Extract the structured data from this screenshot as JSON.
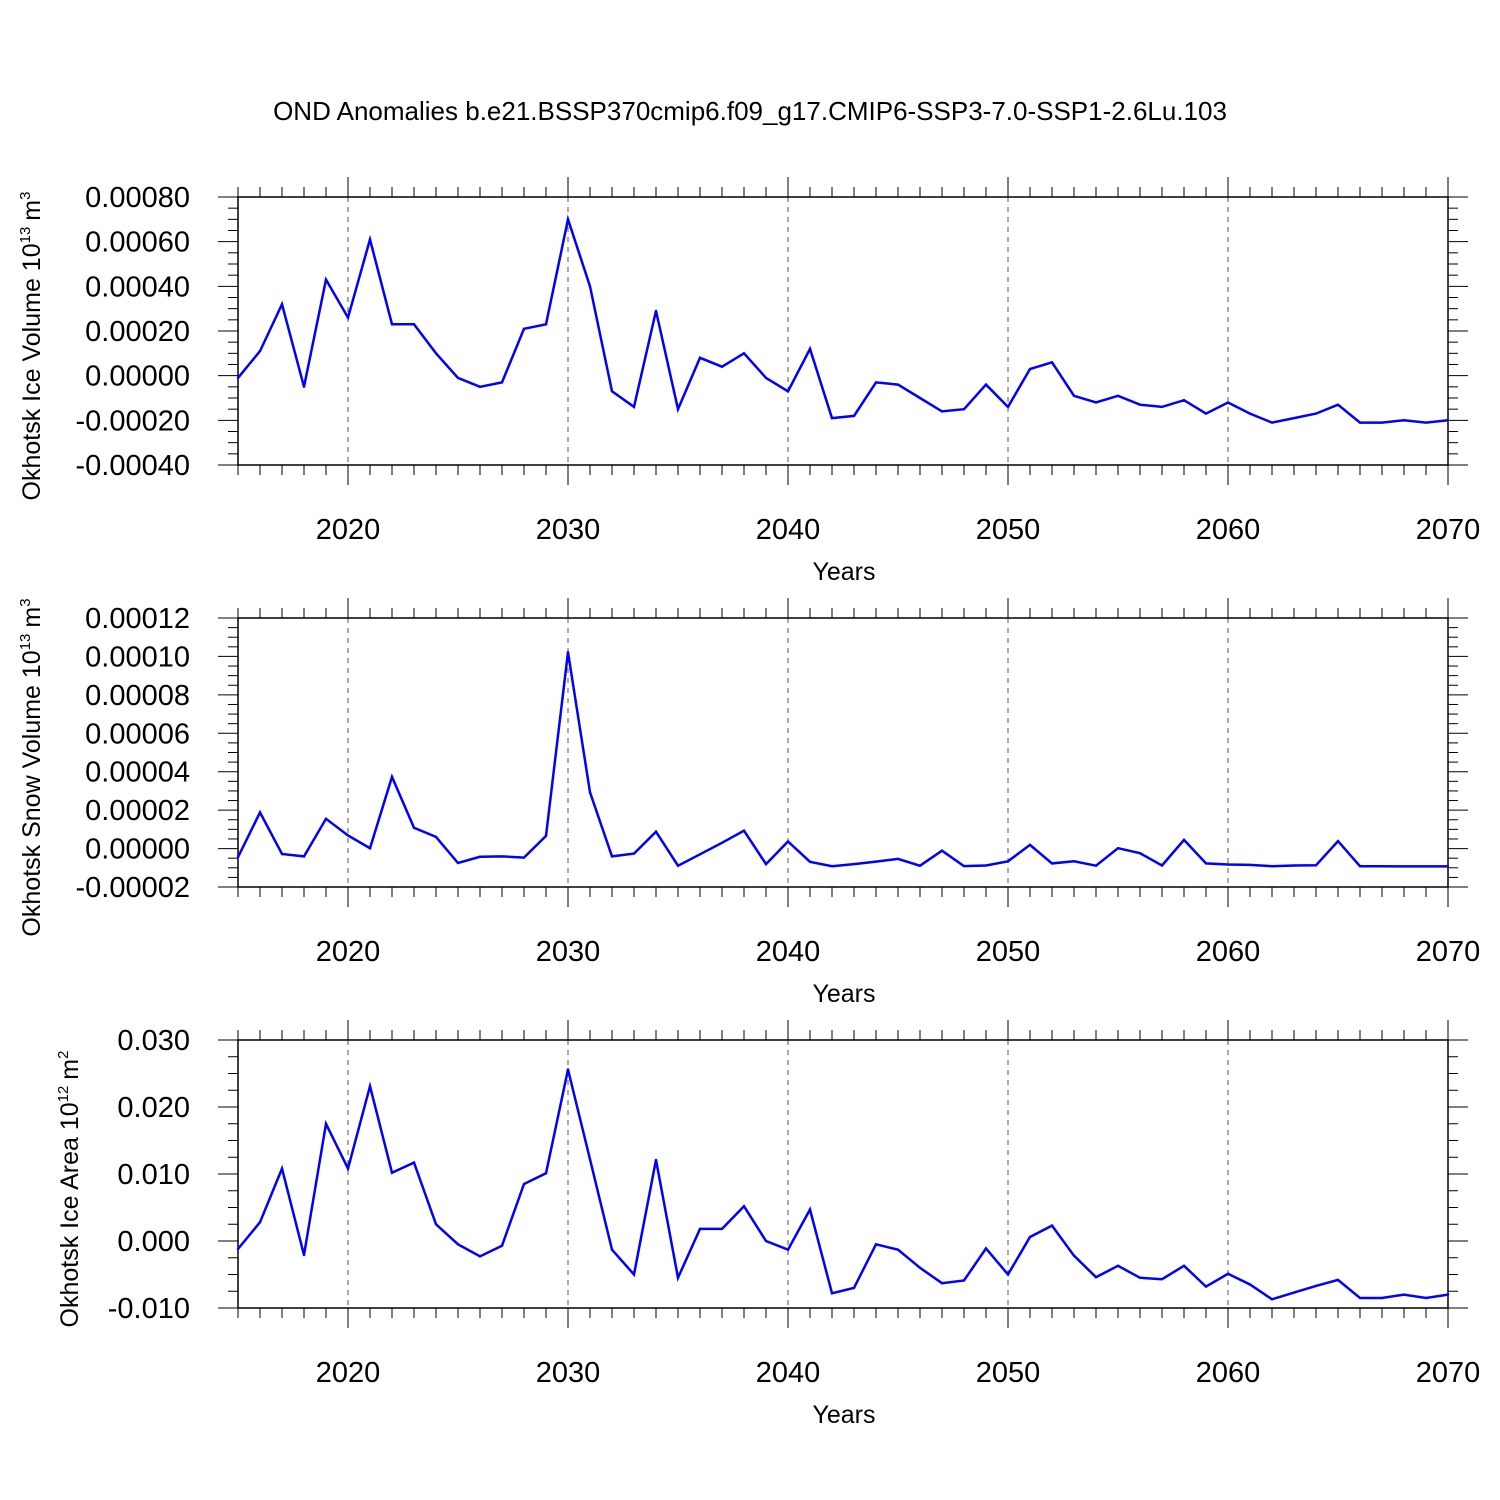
{
  "title": "OND Anomalies b.e21.BSSP370cmip6.f09_g17.CMIP6-SSP3-7.0-SSP1-2.6Lu.103",
  "line_color": "#0000ff",
  "chart_data": [
    {
      "type": "line",
      "xlabel": "Years",
      "ylabel_text": "Okhotsk Ice Volume 10",
      "ylabel_exp": "13",
      "ylabel_unit": "m",
      "ylabel_unit_exp": "3",
      "xlim": [
        2015,
        2070
      ],
      "ylim": [
        -0.0004,
        0.0008
      ],
      "x_ticks": [
        2020,
        2030,
        2040,
        2050,
        2060,
        2070
      ],
      "y_ticks": [
        -0.0004,
        -0.0002,
        0.0,
        0.0002,
        0.0004,
        0.0006,
        0.0008
      ],
      "y_tick_labels": [
        "-0.00040",
        "-0.00020",
        "0.00000",
        "0.00020",
        "0.00040",
        "0.00060",
        "0.00080"
      ],
      "grid": "dashed vertical at major x ticks",
      "x": [
        2015,
        2016,
        2017,
        2018,
        2019,
        2020,
        2021,
        2022,
        2023,
        2024,
        2025,
        2026,
        2027,
        2028,
        2029,
        2030,
        2031,
        2032,
        2033,
        2034,
        2035,
        2036,
        2037,
        2038,
        2039,
        2040,
        2041,
        2042,
        2043,
        2044,
        2045,
        2046,
        2047,
        2048,
        2049,
        2050,
        2051,
        2052,
        2053,
        2054,
        2055,
        2056,
        2057,
        2058,
        2059,
        2060,
        2061,
        2062,
        2063,
        2064,
        2065,
        2066,
        2067,
        2068,
        2069,
        2070
      ],
      "values": [
        -1e-05,
        0.00011,
        0.00032,
        -5e-05,
        0.00043,
        0.00026,
        0.00061,
        0.00023,
        0.00023,
        0.0001,
        -1e-05,
        -5e-05,
        -3e-05,
        0.00021,
        0.00023,
        0.0007,
        0.0004,
        -7e-05,
        -0.00014,
        0.00029,
        -0.00015,
        8e-05,
        4e-05,
        0.0001,
        -1e-05,
        -7e-05,
        0.00012,
        -0.00019,
        -0.00018,
        -3e-05,
        -4e-05,
        -0.0001,
        -0.00016,
        -0.00015,
        -4e-05,
        -0.00014,
        3e-05,
        6e-05,
        -9e-05,
        -0.00012,
        -9e-05,
        -0.00013,
        -0.00014,
        -0.00011,
        -0.00017,
        -0.00012,
        -0.00017,
        -0.00021,
        -0.00019,
        -0.00017,
        -0.00013,
        -0.00021,
        -0.00021,
        -0.0002,
        -0.00021,
        -0.0002
      ]
    },
    {
      "type": "line",
      "xlabel": "Years",
      "ylabel_text": "Okhotsk Snow Volume 10",
      "ylabel_exp": "13",
      "ylabel_unit": "m",
      "ylabel_unit_exp": "3",
      "xlim": [
        2015,
        2070
      ],
      "ylim": [
        -2e-05,
        0.00012
      ],
      "x_ticks": [
        2020,
        2030,
        2040,
        2050,
        2060,
        2070
      ],
      "y_ticks": [
        -2e-05,
        0.0,
        2e-05,
        4e-05,
        6e-05,
        8e-05,
        0.0001,
        0.00012
      ],
      "y_tick_labels": [
        "-0.00002",
        "0.00000",
        "0.00002",
        "0.00004",
        "0.00006",
        "0.00008",
        "0.00010",
        "0.00012"
      ],
      "grid": "dashed vertical at major x ticks",
      "x": [
        2015,
        2016,
        2017,
        2018,
        2019,
        2020,
        2021,
        2022,
        2023,
        2024,
        2025,
        2026,
        2027,
        2028,
        2029,
        2030,
        2031,
        2032,
        2033,
        2034,
        2035,
        2036,
        2037,
        2038,
        2039,
        2040,
        2041,
        2042,
        2043,
        2044,
        2045,
        2046,
        2047,
        2048,
        2049,
        2050,
        2051,
        2052,
        2053,
        2054,
        2055,
        2056,
        2057,
        2058,
        2059,
        2060,
        2061,
        2062,
        2063,
        2064,
        2065,
        2066,
        2067,
        2068,
        2069,
        2070
      ],
      "values": [
        -4.5e-06,
        1.88e-05,
        -2.8e-06,
        -4.1e-06,
        1.55e-05,
        6.8e-06,
        2e-07,
        3.73e-05,
        1.08e-05,
        6.1e-06,
        -7.5e-06,
        -4.3e-06,
        -4.1e-06,
        -4.7e-06,
        6.6e-06,
        0.0001022,
        2.93e-05,
        -4.1e-06,
        -2.6e-06,
        8.8e-06,
        -8.9e-06,
        -3e-06,
        3e-06,
        9.3e-06,
        -8.1e-06,
        3.7e-06,
        -6.9e-06,
        -9.2e-06,
        -8.1e-06,
        -6.8e-06,
        -5.4e-06,
        -8.9e-06,
        -1.1e-06,
        -9.1e-06,
        -8.8e-06,
        -6.6e-06,
        1.9e-06,
        -7.7e-06,
        -6.6e-06,
        -8.9e-06,
        2e-07,
        -2.4e-06,
        -8.8e-06,
        4.5e-06,
        -7.7e-06,
        -8.3e-06,
        -8.5e-06,
        -9.2e-06,
        -8.8e-06,
        -8.7e-06,
        3.9e-06,
        -9.2e-06,
        -9.2e-06,
        -9.3e-06,
        -9.3e-06,
        -9.3e-06
      ]
    },
    {
      "type": "line",
      "xlabel": "Years",
      "ylabel_text": "Okhotsk Ice Area 10",
      "ylabel_exp": "12",
      "ylabel_unit": "m",
      "ylabel_unit_exp": "2",
      "xlim": [
        2015,
        2070
      ],
      "ylim": [
        -0.01,
        0.03
      ],
      "x_ticks": [
        2020,
        2030,
        2040,
        2050,
        2060,
        2070
      ],
      "y_ticks": [
        -0.01,
        0.0,
        0.01,
        0.02,
        0.03
      ],
      "y_tick_labels": [
        "-0.010",
        "0.000",
        "0.010",
        "0.020",
        "0.030"
      ],
      "grid": "dashed vertical at major x ticks",
      "x": [
        2015,
        2016,
        2017,
        2018,
        2019,
        2020,
        2021,
        2022,
        2023,
        2024,
        2025,
        2026,
        2027,
        2028,
        2029,
        2030,
        2031,
        2032,
        2033,
        2034,
        2035,
        2036,
        2037,
        2038,
        2039,
        2040,
        2041,
        2042,
        2043,
        2044,
        2045,
        2046,
        2047,
        2048,
        2049,
        2050,
        2051,
        2052,
        2053,
        2054,
        2055,
        2056,
        2057,
        2058,
        2059,
        2060,
        2061,
        2062,
        2063,
        2064,
        2065,
        2066,
        2067,
        2068,
        2069,
        2070
      ],
      "values": [
        -0.0012,
        0.0028,
        0.0108,
        -0.0021,
        0.0175,
        0.0108,
        0.0231,
        0.0102,
        0.0117,
        0.0025,
        -0.0005,
        -0.0023,
        -0.0007,
        0.0085,
        0.0101,
        0.0256,
        0.0122,
        -0.0013,
        -0.005,
        0.0121,
        -0.0055,
        0.0018,
        0.0018,
        0.0052,
        0.0,
        -0.0013,
        0.0047,
        -0.0078,
        -0.007,
        -0.0005,
        -0.0013,
        -0.004,
        -0.0063,
        -0.0059,
        -0.0011,
        -0.005,
        0.0006,
        0.0023,
        -0.0022,
        -0.0054,
        -0.0037,
        -0.0055,
        -0.0057,
        -0.0037,
        -0.0068,
        -0.0049,
        -0.0065,
        -0.0087,
        -0.0077,
        -0.0067,
        -0.0058,
        -0.0085,
        -0.0085,
        -0.008,
        -0.0085,
        -0.008
      ]
    }
  ]
}
